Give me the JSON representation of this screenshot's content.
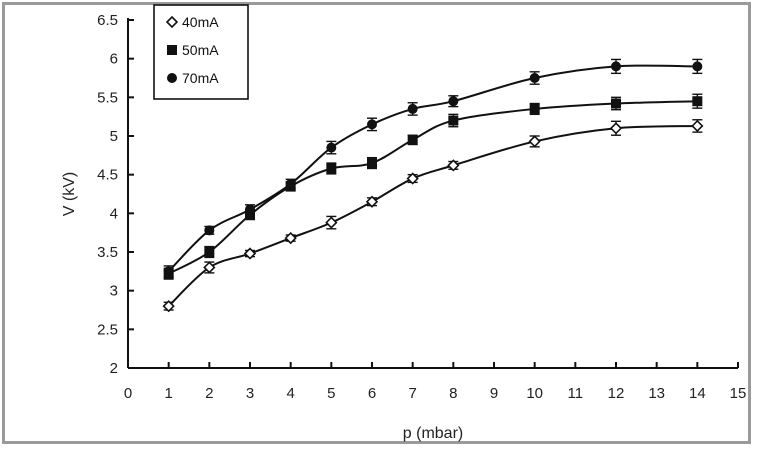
{
  "chart_data": {
    "type": "line",
    "title": "",
    "xlabel": "p (mbar)",
    "ylabel": "V (kV)",
    "xlim": [
      0,
      15
    ],
    "ylim": [
      2,
      6.5
    ],
    "x_ticks": [
      "0",
      "1",
      "2",
      "3",
      "4",
      "5",
      "6",
      "7",
      "8",
      "9",
      "10",
      "11",
      "12",
      "13",
      "14",
      "15"
    ],
    "y_ticks": [
      "2",
      "2.5",
      "3",
      "3.5",
      "4",
      "4.5",
      "5",
      "5.5",
      "6",
      "6.5"
    ],
    "grid": false,
    "legend_position": "top-left",
    "series": [
      {
        "name": "40mA",
        "marker": "open-diamond",
        "color": "#111111",
        "x": [
          1,
          2,
          3,
          4,
          5,
          6,
          7,
          8,
          10,
          12,
          14
        ],
        "y": [
          2.8,
          3.3,
          3.48,
          3.68,
          3.88,
          4.15,
          4.45,
          4.62,
          4.93,
          5.1,
          5.13
        ],
        "err": [
          0.05,
          0.07,
          0.04,
          0.04,
          0.08,
          0.05,
          0.05,
          0.05,
          0.07,
          0.09,
          0.08
        ]
      },
      {
        "name": "50mA",
        "marker": "filled-square",
        "color": "#111111",
        "x": [
          1,
          2,
          3,
          4,
          5,
          6,
          7,
          8,
          10,
          12,
          14
        ],
        "y": [
          3.22,
          3.5,
          3.98,
          4.35,
          4.58,
          4.65,
          4.95,
          5.2,
          5.35,
          5.42,
          5.45
        ],
        "err": [
          0.07,
          0.07,
          0.06,
          0.06,
          0.07,
          0.07,
          0.06,
          0.08,
          0.07,
          0.08,
          0.09
        ]
      },
      {
        "name": "70mA",
        "marker": "filled-circle",
        "color": "#111111",
        "x": [
          1,
          2,
          3,
          4,
          5,
          6,
          7,
          8,
          10,
          12,
          14
        ],
        "y": [
          3.25,
          3.78,
          4.05,
          4.38,
          4.85,
          5.15,
          5.35,
          5.45,
          5.75,
          5.9,
          5.9
        ],
        "err": [
          0.07,
          0.05,
          0.06,
          0.06,
          0.08,
          0.08,
          0.08,
          0.07,
          0.08,
          0.09,
          0.09
        ]
      }
    ]
  }
}
